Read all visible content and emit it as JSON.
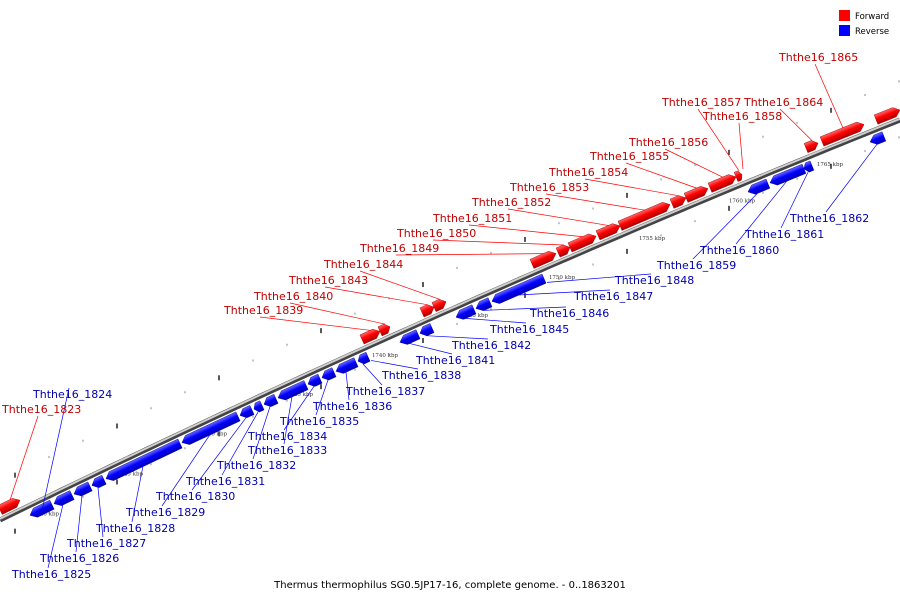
{
  "caption": "Thermus thermophilus SG0.5JP17-16, complete genome. - 0..1863201",
  "legend": [
    {
      "label": "Forward",
      "color": "#ff0000",
      "icon": "red-square-icon"
    },
    {
      "label": "Reverse",
      "color": "#0000ff",
      "icon": "blue-square-icon"
    }
  ],
  "colors": {
    "forward": "#ff0000",
    "reverse": "#0000ff",
    "forward_label": "#c00000",
    "reverse_label": "#0000b0"
  },
  "scale_labels": [
    "1720 kbp",
    "1725 kbp",
    "1730 kbp",
    "1735 kbp",
    "1740 kbp",
    "1745 kbp",
    "1750 kbp",
    "1755 kbp",
    "1760 kbp",
    "1765 kbp"
  ],
  "genes": [
    {
      "name": "Ththe16_1823",
      "strand": "forward"
    },
    {
      "name": "Ththe16_1824",
      "strand": "reverse"
    },
    {
      "name": "Ththe16_1825",
      "strand": "reverse"
    },
    {
      "name": "Ththe16_1826",
      "strand": "reverse"
    },
    {
      "name": "Ththe16_1827",
      "strand": "reverse"
    },
    {
      "name": "Ththe16_1828",
      "strand": "reverse"
    },
    {
      "name": "Ththe16_1829",
      "strand": "reverse"
    },
    {
      "name": "Ththe16_1830",
      "strand": "reverse"
    },
    {
      "name": "Ththe16_1831",
      "strand": "reverse"
    },
    {
      "name": "Ththe16_1832",
      "strand": "reverse"
    },
    {
      "name": "Ththe16_1833",
      "strand": "reverse"
    },
    {
      "name": "Ththe16_1834",
      "strand": "reverse"
    },
    {
      "name": "Ththe16_1835",
      "strand": "reverse"
    },
    {
      "name": "Ththe16_1836",
      "strand": "reverse"
    },
    {
      "name": "Ththe16_1837",
      "strand": "reverse"
    },
    {
      "name": "Ththe16_1838",
      "strand": "reverse"
    },
    {
      "name": "Ththe16_1839",
      "strand": "forward"
    },
    {
      "name": "Ththe16_1840",
      "strand": "forward"
    },
    {
      "name": "Ththe16_1841",
      "strand": "reverse"
    },
    {
      "name": "Ththe16_1842",
      "strand": "reverse"
    },
    {
      "name": "Ththe16_1843",
      "strand": "forward"
    },
    {
      "name": "Ththe16_1844",
      "strand": "forward"
    },
    {
      "name": "Ththe16_1845",
      "strand": "reverse"
    },
    {
      "name": "Ththe16_1846",
      "strand": "reverse"
    },
    {
      "name": "Ththe16_1847",
      "strand": "reverse"
    },
    {
      "name": "Ththe16_1848",
      "strand": "reverse"
    },
    {
      "name": "Ththe16_1849",
      "strand": "forward"
    },
    {
      "name": "Ththe16_1850",
      "strand": "forward"
    },
    {
      "name": "Ththe16_1851",
      "strand": "forward"
    },
    {
      "name": "Ththe16_1852",
      "strand": "forward"
    },
    {
      "name": "Ththe16_1853",
      "strand": "forward"
    },
    {
      "name": "Ththe16_1854",
      "strand": "forward"
    },
    {
      "name": "Ththe16_1855",
      "strand": "forward"
    },
    {
      "name": "Ththe16_1856",
      "strand": "forward"
    },
    {
      "name": "Ththe16_1857",
      "strand": "forward"
    },
    {
      "name": "Ththe16_1858",
      "strand": "forward"
    },
    {
      "name": "Ththe16_1859",
      "strand": "reverse"
    },
    {
      "name": "Ththe16_1860",
      "strand": "reverse"
    },
    {
      "name": "Ththe16_1861",
      "strand": "reverse"
    },
    {
      "name": "Ththe16_1862",
      "strand": "reverse"
    },
    {
      "name": "Ththe16_1864",
      "strand": "forward"
    },
    {
      "name": "Ththe16_1865",
      "strand": "forward"
    }
  ]
}
